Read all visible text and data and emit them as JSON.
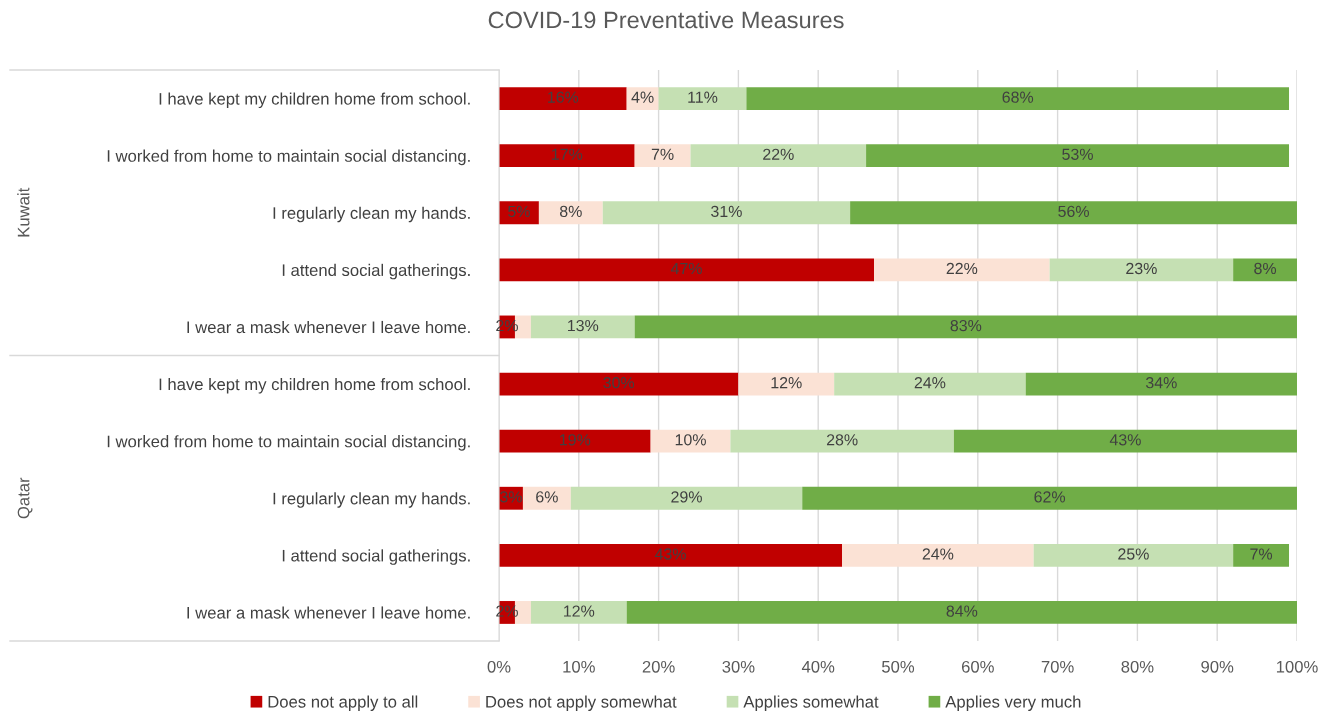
{
  "chart_data": {
    "type": "bar",
    "orientation": "horizontal",
    "stacked": true,
    "title": "COVID-19 Preventative Measures",
    "categories": [
      "I have kept my children home from school.",
      "I worked from home to maintain social distancing.",
      "I regularly clean my hands.",
      "I attend social gatherings.",
      "I wear a mask whenever I leave home.",
      "I have kept my children home from school.",
      "I worked from home to maintain social distancing.",
      "I regularly clean my hands.",
      "I attend social gatherings.",
      "I wear a mask whenever I leave home."
    ],
    "series": [
      {
        "name": "Does not apply to all",
        "color": "#c00000",
        "values": [
          16,
          17,
          5,
          47,
          2,
          30,
          19,
          3,
          43,
          2
        ],
        "value_labels": [
          "16%",
          "17%",
          "5%",
          "47%",
          "2%",
          "30%",
          "19%",
          "3%",
          "43%",
          "2%"
        ]
      },
      {
        "name": "Does not apply somewhat",
        "color": "#fbe2d5",
        "values": [
          4,
          7,
          8,
          22,
          2,
          12,
          10,
          6,
          24,
          2
        ],
        "value_labels": [
          "4%",
          "7%",
          "8%",
          "22%",
          null,
          "12%",
          "10%",
          "6%",
          "24%",
          null
        ]
      },
      {
        "name": "Applies somewhat",
        "color": "#c5e0b3",
        "values": [
          11,
          22,
          31,
          23,
          13,
          24,
          28,
          29,
          25,
          12
        ],
        "value_labels": [
          "11%",
          "22%",
          "31%",
          "23%",
          "13%",
          "24%",
          "28%",
          "29%",
          "25%",
          "12%"
        ]
      },
      {
        "name": "Applies very much",
        "color": "#70ad47",
        "values": [
          68,
          53,
          56,
          8,
          83,
          34,
          43,
          62,
          7,
          84
        ],
        "value_labels": [
          "68%",
          "53%",
          "56%",
          "8%",
          "83%",
          "34%",
          "43%",
          "62%",
          "7%",
          "84%"
        ]
      }
    ],
    "xlim": [
      0,
      100
    ],
    "xticks": [
      {
        "value": 0,
        "label": "0%"
      },
      {
        "value": 10,
        "label": "10%"
      },
      {
        "value": 20,
        "label": "20%"
      },
      {
        "value": 30,
        "label": "30%"
      },
      {
        "value": 40,
        "label": "40%"
      },
      {
        "value": 50,
        "label": "50%"
      },
      {
        "value": 60,
        "label": "60%"
      },
      {
        "value": 70,
        "label": "70%"
      },
      {
        "value": 80,
        "label": "80%"
      },
      {
        "value": 90,
        "label": "90%"
      },
      {
        "value": 100,
        "label": "100%"
      }
    ],
    "annotations": [
      "Kuwait",
      "Qatar"
    ],
    "grid": "x",
    "legend": "bottom"
  }
}
